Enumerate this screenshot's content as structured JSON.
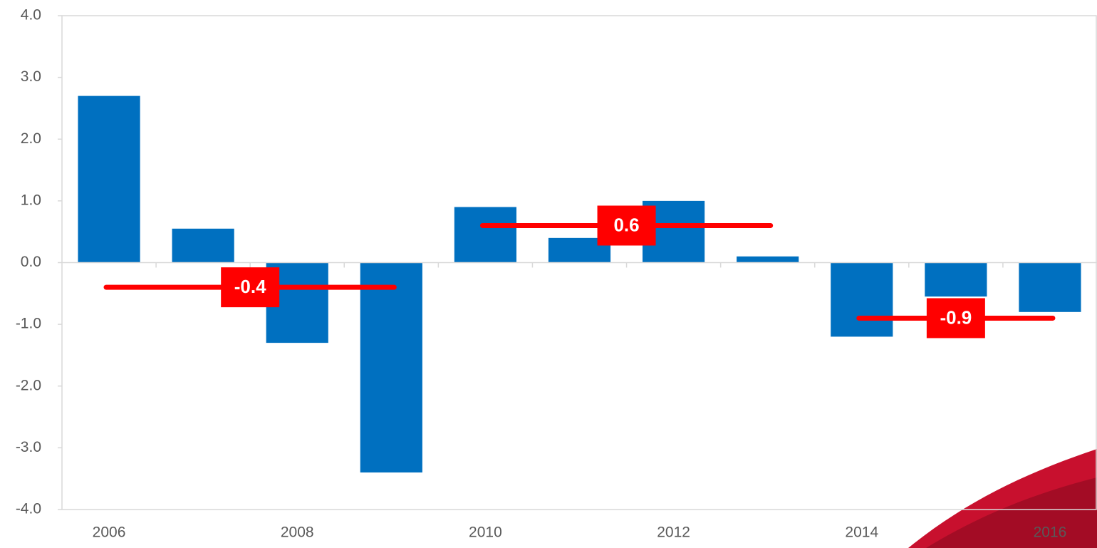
{
  "chart_data": {
    "type": "bar",
    "categories": [
      "2006",
      null,
      "2008",
      null,
      "2010",
      null,
      "2012",
      null,
      "2014",
      null,
      "2016"
    ],
    "values": [
      2.7,
      0.55,
      -1.3,
      -3.4,
      0.9,
      0.4,
      1.0,
      0.1,
      -1.2,
      -0.55,
      -0.8
    ],
    "color": "#0070c0",
    "ylim": [
      -4,
      4
    ],
    "yticks": [
      {
        "value": -4,
        "label": "-4.0"
      },
      {
        "value": -3,
        "label": "-3.0"
      },
      {
        "value": -2,
        "label": "-2.0"
      },
      {
        "value": -1,
        "label": "-1.0"
      },
      {
        "value": 0,
        "label": "0.0"
      },
      {
        "value": 1,
        "label": "1.0"
      },
      {
        "value": 2,
        "label": "2.0"
      },
      {
        "value": 3,
        "label": "3.0"
      },
      {
        "value": 4,
        "label": "4.0"
      }
    ],
    "averages": [
      {
        "value": -0.4,
        "span": [
          0,
          3
        ]
      },
      {
        "value": 0.6,
        "span": [
          4,
          7
        ]
      },
      {
        "value": -0.9,
        "span": [
          8,
          10
        ]
      }
    ],
    "average_color": "#ff0000"
  }
}
